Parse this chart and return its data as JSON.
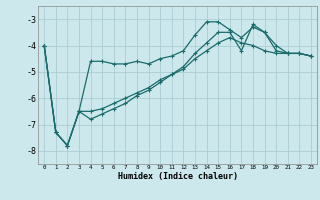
{
  "xlabel": "Humidex (Indice chaleur)",
  "bg_color": "#cce8ec",
  "grid_color": "#aacdd4",
  "line_color": "#1a6b6b",
  "xlim": [
    -0.5,
    23.5
  ],
  "ylim": [
    -8.5,
    -2.5
  ],
  "yticks": [
    -8,
    -7,
    -6,
    -5,
    -4,
    -3
  ],
  "xticks": [
    0,
    1,
    2,
    3,
    4,
    5,
    6,
    7,
    8,
    9,
    10,
    11,
    12,
    13,
    14,
    15,
    16,
    17,
    18,
    19,
    20,
    21,
    22,
    23
  ],
  "series": [
    {
      "x": [
        0,
        1,
        2,
        3,
        4,
        5,
        6,
        7,
        8,
        9,
        10,
        11,
        12,
        13,
        14,
        15,
        16,
        17,
        18,
        19,
        20,
        21,
        22,
        23
      ],
      "y": [
        -4.0,
        -7.3,
        -7.8,
        -6.5,
        -4.6,
        -4.6,
        -4.7,
        -4.7,
        -4.6,
        -4.7,
        -4.5,
        -4.4,
        -4.2,
        -3.6,
        -3.1,
        -3.1,
        -3.4,
        -3.7,
        -3.3,
        -3.5,
        -4.2,
        -4.3,
        -4.3,
        -4.4
      ]
    },
    {
      "x": [
        0,
        1,
        2,
        3,
        4,
        5,
        6,
        7,
        8,
        9,
        10,
        11,
        12,
        13,
        14,
        15,
        16,
        17,
        18,
        19,
        20,
        21,
        22,
        23
      ],
      "y": [
        -4.0,
        -7.3,
        -7.8,
        -6.5,
        -6.5,
        -6.4,
        -6.2,
        -6.0,
        -5.8,
        -5.6,
        -5.3,
        -5.1,
        -4.9,
        -4.5,
        -4.2,
        -3.9,
        -3.7,
        -3.9,
        -4.0,
        -4.2,
        -4.3,
        -4.3,
        -4.3,
        -4.4
      ]
    },
    {
      "x": [
        0,
        1,
        2,
        3,
        4,
        5,
        6,
        7,
        8,
        9,
        10,
        11,
        12,
        13,
        14,
        15,
        16,
        17,
        18,
        19,
        20,
        21,
        22,
        23
      ],
      "y": [
        -4.0,
        -7.3,
        -7.8,
        -6.5,
        -6.8,
        -6.6,
        -6.4,
        -6.2,
        -5.9,
        -5.7,
        -5.4,
        -5.1,
        -4.8,
        -4.3,
        -3.9,
        -3.5,
        -3.5,
        -4.2,
        -3.2,
        -3.5,
        -4.0,
        -4.3,
        -4.3,
        -4.4
      ]
    }
  ]
}
